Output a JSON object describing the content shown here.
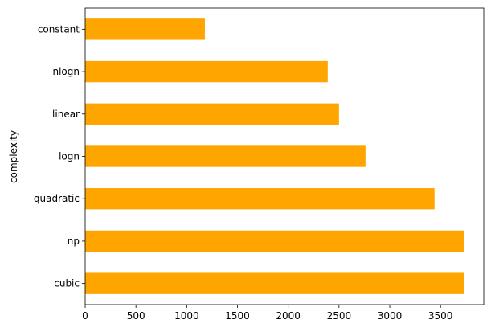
{
  "chart_data": {
    "type": "bar",
    "orientation": "horizontal",
    "categories": [
      "cubic",
      "np",
      "quadratic",
      "logn",
      "linear",
      "nlogn",
      "constant"
    ],
    "values": [
      3734,
      3734,
      3441,
      2761,
      2500,
      2389,
      1179
    ],
    "xlabel": "",
    "ylabel": "complexity",
    "xlim": [
      0,
      3926
    ],
    "xticks": [
      0,
      500,
      1000,
      1500,
      2000,
      2500,
      3000,
      3500
    ],
    "grid": false,
    "legend": "none",
    "bar_color": "#FFA500"
  }
}
